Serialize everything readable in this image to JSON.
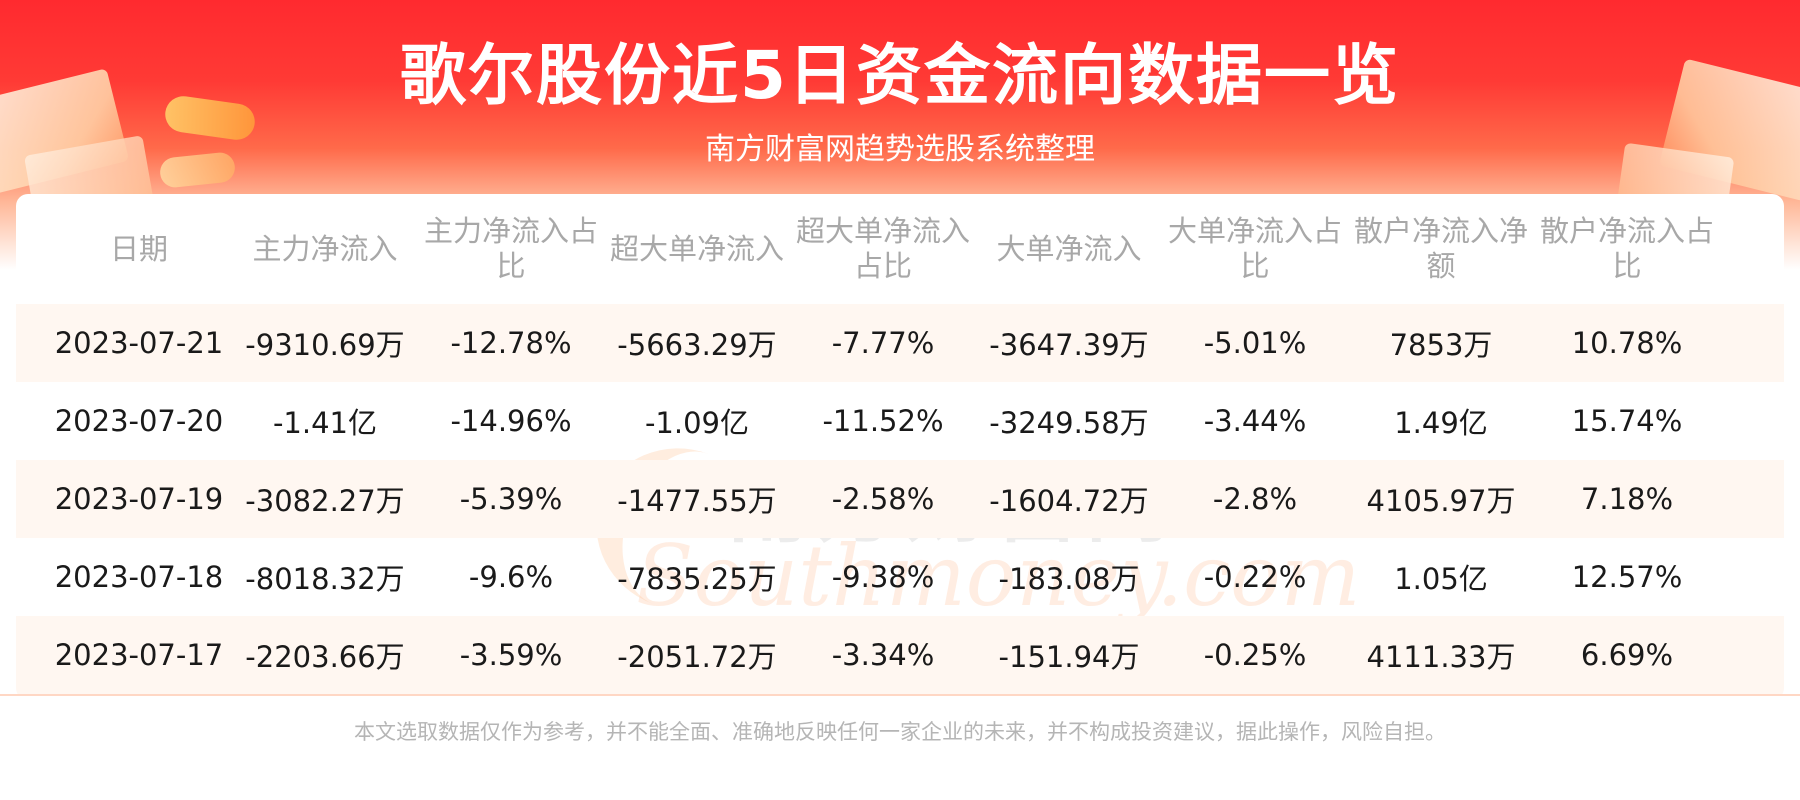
{
  "header": {
    "title": "歌尔股份近5日资金流向数据一览",
    "subtitle": "南方财富网趋势选股系统整理"
  },
  "watermark": {
    "cn": "南方财富网",
    "en": "Southmoney.com"
  },
  "chart_data": {
    "type": "table",
    "columns": [
      "日期",
      "主力净流入",
      "主力净流入占比",
      "超大单净流入",
      "超大单净流入占比",
      "大单净流入",
      "大单净流入占比",
      "散户净流入净额",
      "散户净流入占比"
    ],
    "rows": [
      [
        "2023-07-21",
        "-9310.69万",
        "-12.78%",
        "-5663.29万",
        "-7.77%",
        "-3647.39万",
        "-5.01%",
        "7853万",
        "10.78%"
      ],
      [
        "2023-07-20",
        "-1.41亿",
        "-14.96%",
        "-1.09亿",
        "-11.52%",
        "-3249.58万",
        "-3.44%",
        "1.49亿",
        "15.74%"
      ],
      [
        "2023-07-19",
        "-3082.27万",
        "-5.39%",
        "-1477.55万",
        "-2.58%",
        "-1604.72万",
        "-2.8%",
        "4105.97万",
        "7.18%"
      ],
      [
        "2023-07-18",
        "-8018.32万",
        "-9.6%",
        "-7835.25万",
        "-9.38%",
        "-183.08万",
        "-0.22%",
        "1.05亿",
        "12.57%"
      ],
      [
        "2023-07-17",
        "-2203.66万",
        "-3.59%",
        "-2051.72万",
        "-3.34%",
        "-151.94万",
        "-0.25%",
        "4111.33万",
        "6.69%"
      ]
    ]
  },
  "footer": {
    "disclaimer": "本文选取数据仅作为参考，并不能全面、准确地反映任何一家企业的未来，并不构成投资建议，据此操作，风险自担。"
  }
}
